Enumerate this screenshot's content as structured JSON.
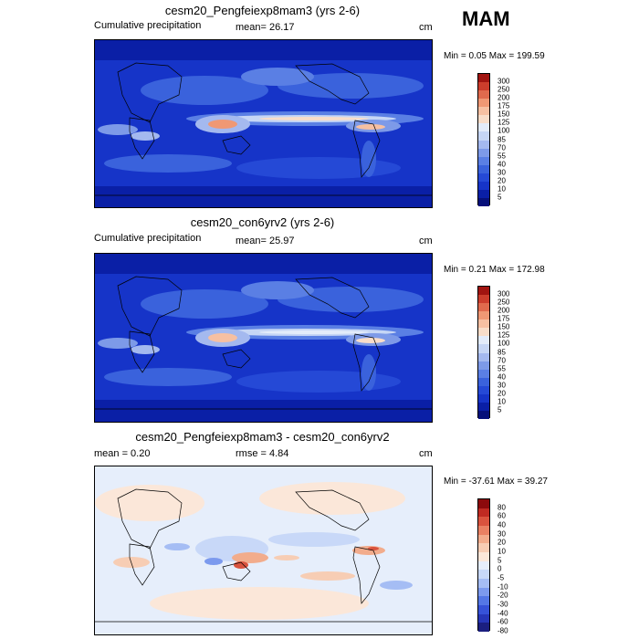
{
  "season": "MAM",
  "colors": {
    "precip": [
      "#06107a",
      "#0a1fa6",
      "#1634c8",
      "#2549d6",
      "#3a62dc",
      "#5a7fe4",
      "#7d9ae8",
      "#a4b9ef",
      "#c6d6f5",
      "#e3ecfa",
      "#f8ddc9",
      "#f6c0a2",
      "#ef9874",
      "#e06a4d",
      "#cc3d2c",
      "#a11410"
    ],
    "diff": [
      "#1b1f80",
      "#2636b8",
      "#3652d8",
      "#5477e6",
      "#7c9aee",
      "#a5bdf4",
      "#c8d8f8",
      "#e6eefb",
      "#fbe7d9",
      "#f7cdb4",
      "#f2ac8c",
      "#e98163",
      "#d9533e",
      "#bf2a22",
      "#8c0a0c"
    ]
  },
  "panels": [
    {
      "title": "cesm20_Pengfeiexp8mam3 (yrs 2-6)",
      "left": "Cumulative precipitation",
      "middle": "mean=  26.17",
      "right": "cm",
      "minmax": "Min =   0.05 Max = 199.59",
      "cbar_labels": [
        "300",
        "250",
        "200",
        "175",
        "150",
        "125",
        "100",
        "85",
        "70",
        "55",
        "40",
        "30",
        "20",
        "10",
        "5"
      ]
    },
    {
      "title": "cesm20_con6yrv2 (yrs 2-6)",
      "left": "Cumulative precipitation",
      "middle": "mean=  25.97",
      "right": "cm",
      "minmax": "Min =   0.21 Max = 172.98",
      "cbar_labels": [
        "300",
        "250",
        "200",
        "175",
        "150",
        "125",
        "100",
        "85",
        "70",
        "55",
        "40",
        "30",
        "20",
        "10",
        "5"
      ]
    },
    {
      "title": "cesm20_Pengfeiexp8mam3 - cesm20_con6yrv2",
      "left": "mean =   0.20",
      "middle": "rmse =   4.84",
      "right": "cm",
      "minmax": "Min = -37.61 Max =  39.27",
      "cbar_labels": [
        "80",
        "60",
        "40",
        "30",
        "20",
        "10",
        "5",
        "0",
        "-5",
        "-10",
        "-20",
        "-30",
        "-40",
        "-60",
        "-80"
      ]
    }
  ]
}
